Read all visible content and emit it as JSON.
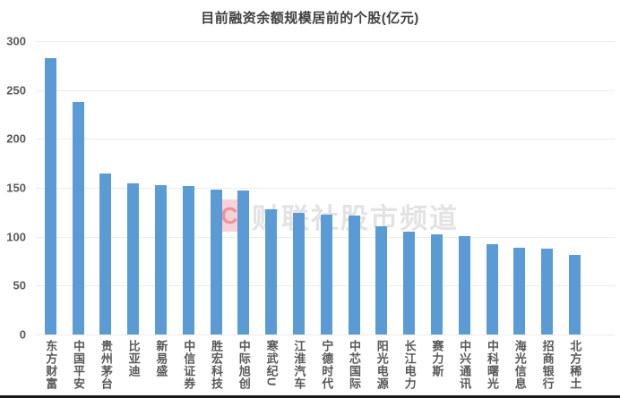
{
  "title": "目前融资余额规模居前的个股(亿元)",
  "watermark": {
    "logo_letter": "C",
    "text": "财联社股市频道"
  },
  "colors": {
    "bar": "#5b9bd5",
    "title_text": "#404040",
    "axis_text": "#595959",
    "gridline": "#ececec",
    "watermark_text": "#e3e3e3",
    "watermark_logo_bg": "#f8d2d6",
    "watermark_logo_letter": "#f0939c",
    "bottom_line": "#1a1a1a"
  },
  "chart_data": {
    "type": "bar",
    "title": "目前融资余额规模居前的个股(亿元)",
    "unit": "亿元",
    "categories": [
      "东方财富",
      "中国平安",
      "贵州茅台",
      "比亚迪",
      "新易盛",
      "中信证券",
      "胜宏科技",
      "中际旭创",
      "寒武纪U",
      "江淮汽车",
      "宁德时代",
      "中芯国际",
      "阳光电源",
      "长江电力",
      "赛力斯",
      "中兴通讯",
      "中科曙光",
      "海光信息",
      "招商银行",
      "北方稀土"
    ],
    "values": [
      283,
      238,
      165,
      155,
      153,
      152,
      148,
      147,
      128,
      124,
      123,
      122,
      111,
      105,
      102,
      101,
      92,
      89,
      88,
      81
    ],
    "ylim": [
      0,
      300
    ],
    "yticks": [
      300,
      250,
      200,
      150,
      100,
      50,
      0
    ],
    "grid": "horizontal",
    "legend": "none",
    "bar_color": "#5b9bd5"
  }
}
